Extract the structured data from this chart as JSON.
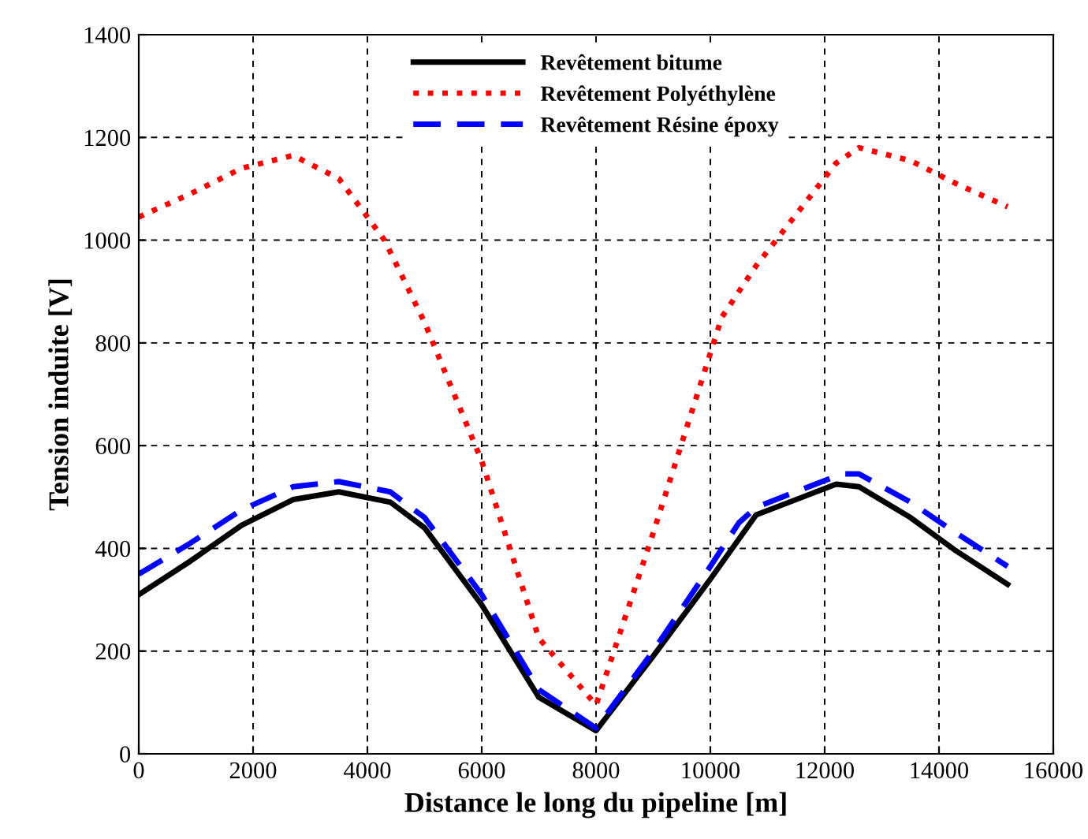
{
  "chart_data": {
    "type": "line",
    "xlabel": "Distance le long du pipeline [m]",
    "ylabel": "Tension induite [V]",
    "xlim": [
      0,
      16000
    ],
    "xticks": [
      0,
      2000,
      4000,
      6000,
      8000,
      10000,
      12000,
      14000,
      16000
    ],
    "ylim": [
      0,
      1400
    ],
    "yticks": [
      0,
      200,
      400,
      600,
      800,
      1000,
      1200,
      1400
    ],
    "grid": true,
    "legend": "top",
    "series": [
      {
        "name": "Revêtement bitume",
        "color": "#000000",
        "line_style": "solid",
        "x": [
          0,
          900,
          1800,
          2700,
          3500,
          4400,
          5000,
          6000,
          7000,
          8000,
          9000,
          10000,
          10800,
          12200,
          12600,
          13500,
          14300,
          15200
        ],
        "values": [
          310,
          375,
          445,
          495,
          510,
          490,
          440,
          290,
          110,
          45,
          190,
          340,
          465,
          525,
          520,
          460,
          395,
          330
        ]
      },
      {
        "name": "Revêtement Polyéthylène",
        "color": "#ff0000",
        "line_style": "dotted",
        "x": [
          0,
          900,
          1800,
          2700,
          3500,
          4300,
          5000,
          6000,
          7000,
          8000,
          9000,
          10000,
          10200,
          10800,
          12200,
          12600,
          13500,
          14300,
          15200
        ],
        "values": [
          1045,
          1090,
          1140,
          1165,
          1120,
          1000,
          840,
          570,
          225,
          95,
          430,
          780,
          850,
          950,
          1150,
          1180,
          1155,
          1110,
          1065
        ]
      },
      {
        "name": "Revêtement Résine époxy",
        "color": "#0000ff",
        "line_style": "dashed",
        "x": [
          0,
          900,
          1800,
          2700,
          3500,
          4400,
          5000,
          6000,
          7000,
          8000,
          9000,
          10000,
          10500,
          10800,
          12300,
          12600,
          13500,
          14300,
          15200
        ],
        "values": [
          350,
          410,
          475,
          520,
          530,
          510,
          460,
          310,
          125,
          50,
          200,
          365,
          450,
          480,
          545,
          545,
          490,
          430,
          365
        ]
      }
    ]
  }
}
